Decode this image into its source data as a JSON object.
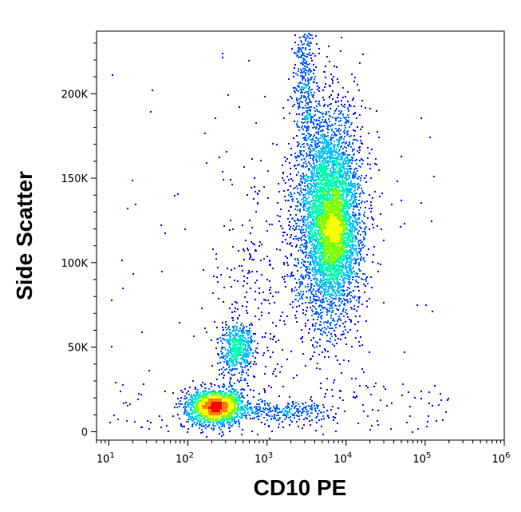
{
  "chart_data": {
    "type": "scatter",
    "style": "flow-cytometry-density-dot-plot",
    "xlabel": "CD10 PE",
    "ylabel": "Side Scatter",
    "x_scale": "log",
    "xlim": [
      7,
      1000000
    ],
    "ylim": [
      -5000,
      237000
    ],
    "x_ticks": [
      {
        "base": "10",
        "exp": "1",
        "value": 10
      },
      {
        "base": "10",
        "exp": "2",
        "value": 100
      },
      {
        "base": "10",
        "exp": "3",
        "value": 1000
      },
      {
        "base": "10",
        "exp": "4",
        "value": 10000
      },
      {
        "base": "10",
        "exp": "5",
        "value": 100000
      },
      {
        "base": "10",
        "exp": "6",
        "value": 1000000
      }
    ],
    "y_ticks": [
      {
        "label": "0",
        "value": 0
      },
      {
        "label": "50K",
        "value": 50000
      },
      {
        "label": "100K",
        "value": 100000
      },
      {
        "label": "150K",
        "value": 150000
      },
      {
        "label": "200K",
        "value": 200000
      }
    ],
    "density_colors": [
      "#0000ff",
      "#0060ff",
      "#00c0ff",
      "#00ffb0",
      "#80ff00",
      "#ffff00",
      "#ff8000",
      "#ff0000"
    ],
    "populations": [
      {
        "x_center": 6000,
        "x_log_sd": 0.21,
        "y_center": 128000,
        "y_sd": 32000,
        "weight": 0.52
      },
      {
        "x_center": 7000,
        "x_log_sd": 0.13,
        "y_center": 120000,
        "y_sd": 14000,
        "weight": 0.1
      },
      {
        "x_center": 220,
        "x_log_sd": 0.17,
        "y_center": 15000,
        "y_sd": 5000,
        "weight": 0.22
      },
      {
        "x_center": 400,
        "x_log_sd": 0.1,
        "y_center": 50000,
        "y_sd": 8000,
        "weight": 0.06
      },
      {
        "x_center": 3000,
        "x_log_sd": 0.07,
        "y_center": 205000,
        "y_sd": 22000,
        "weight": 0.04
      },
      {
        "x_center": 1500,
        "x_log_sd": 0.35,
        "y_center": 12000,
        "y_sd": 3000,
        "weight": 0.03
      },
      {
        "x_center": 700,
        "x_log_sd": 0.25,
        "y_center": 80000,
        "y_sd": 40000,
        "weight": 0.03
      }
    ]
  }
}
